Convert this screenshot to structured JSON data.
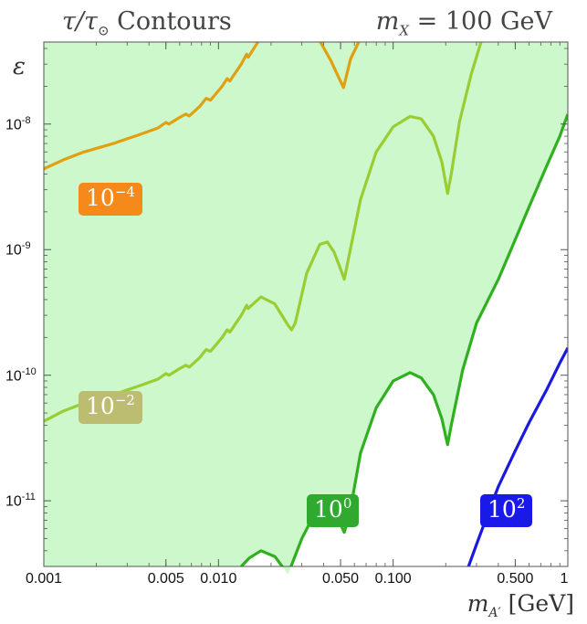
{
  "chart_data": {
    "type": "line",
    "title_left": "τ/τ",
    "title_left_sub": "⊙",
    "title_left_rest": "Contours",
    "title_right": "m",
    "title_right_sub": "X",
    "title_right_rest": " = 100 GeV",
    "ylabel": "ε",
    "xlabel": "m",
    "xlabel_sub": "A′",
    "xlabel_unit": "[GeV]",
    "xscale": "log",
    "yscale": "log",
    "xlim": [
      0.001,
      1
    ],
    "ylim": [
      3e-12,
      4.5e-08
    ],
    "xticks": [
      {
        "value": 0.001,
        "label": "0.001"
      },
      {
        "value": 0.005,
        "label": "0.005"
      },
      {
        "value": 0.01,
        "label": "0.010"
      },
      {
        "value": 0.05,
        "label": "0.050"
      },
      {
        "value": 0.1,
        "label": "0.100"
      },
      {
        "value": 0.5,
        "label": "0.500"
      },
      {
        "value": 1,
        "label": "1"
      }
    ],
    "yticks": [
      {
        "value": 1e-08,
        "base": "10",
        "exp": "-8"
      },
      {
        "value": 1e-09,
        "base": "10",
        "exp": "-9"
      },
      {
        "value": 1e-10,
        "base": "10",
        "exp": "-10"
      },
      {
        "value": 1e-11,
        "base": "10",
        "exp": "-11"
      }
    ],
    "shading": {
      "color": "#ccf8cc",
      "description_region": "tau < tau_sun"
    },
    "series": [
      {
        "label": "10^-4",
        "color": "#e0a010",
        "points": [
          [
            0.001,
            4.4e-09
          ],
          [
            0.0013,
            5.2e-09
          ],
          [
            0.0017,
            6e-09
          ],
          [
            0.0025,
            7e-09
          ],
          [
            0.0035,
            8.2e-09
          ],
          [
            0.0045,
            9.3e-09
          ],
          [
            0.005,
            1.03e-08
          ],
          [
            0.0052,
            1e-08
          ],
          [
            0.006,
            1.13e-08
          ],
          [
            0.0065,
            1.2e-08
          ],
          [
            0.0068,
            1.16e-08
          ],
          [
            0.0078,
            1.38e-08
          ],
          [
            0.0085,
            1.6e-08
          ],
          [
            0.009,
            1.55e-08
          ],
          [
            0.0105,
            2e-08
          ],
          [
            0.0112,
            2.3e-08
          ],
          [
            0.0116,
            2.2e-08
          ],
          [
            0.0135,
            3e-08
          ],
          [
            0.0145,
            3.6e-08
          ],
          [
            0.0148,
            3.4e-08
          ],
          [
            0.017,
            4.6e-08
          ]
        ]
      },
      {
        "label": "10^-4 (upper branch)",
        "color": "#e0a010",
        "points": [
          [
            0.038,
            4.6e-08
          ],
          [
            0.044,
            3.2e-08
          ],
          [
            0.052,
            1.95e-08
          ],
          [
            0.057,
            3.3e-08
          ],
          [
            0.064,
            4.6e-08
          ]
        ]
      },
      {
        "label": "10^-2",
        "color": "#9acd32",
        "points": [
          [
            0.001,
            4.3e-11
          ],
          [
            0.0013,
            5.2e-11
          ],
          [
            0.0017,
            6e-11
          ],
          [
            0.0025,
            7e-11
          ],
          [
            0.0035,
            8.2e-11
          ],
          [
            0.0045,
            9.3e-11
          ],
          [
            0.005,
            1.03e-10
          ],
          [
            0.0052,
            1e-10
          ],
          [
            0.006,
            1.13e-10
          ],
          [
            0.0065,
            1.2e-10
          ],
          [
            0.0068,
            1.16e-10
          ],
          [
            0.0078,
            1.38e-10
          ],
          [
            0.0085,
            1.6e-10
          ],
          [
            0.009,
            1.55e-10
          ],
          [
            0.0105,
            2e-10
          ],
          [
            0.0112,
            2.3e-10
          ],
          [
            0.0116,
            2.2e-10
          ],
          [
            0.0135,
            3e-10
          ],
          [
            0.0145,
            3.6e-10
          ],
          [
            0.0148,
            3.4e-10
          ],
          [
            0.0175,
            4.2e-10
          ],
          [
            0.021,
            3.7e-10
          ],
          [
            0.025,
            2.5e-10
          ],
          [
            0.0262,
            2.3e-10
          ],
          [
            0.0275,
            2.6e-10
          ],
          [
            0.032,
            6.5e-10
          ],
          [
            0.038,
            1.1e-09
          ],
          [
            0.042,
            1.15e-09
          ],
          [
            0.046,
            9.5e-10
          ],
          [
            0.05,
            7e-10
          ],
          [
            0.0525,
            5.8e-10
          ],
          [
            0.055,
            8e-10
          ],
          [
            0.065,
            2.5e-09
          ],
          [
            0.08,
            6e-09
          ],
          [
            0.1,
            9.5e-09
          ],
          [
            0.125,
            1.15e-08
          ],
          [
            0.145,
            1.1e-08
          ],
          [
            0.17,
            8e-09
          ],
          [
            0.19,
            5e-09
          ],
          [
            0.205,
            2.8e-09
          ],
          [
            0.215,
            4e-09
          ],
          [
            0.24,
            1.05e-08
          ],
          [
            0.28,
            2.5e-08
          ],
          [
            0.32,
            4.6e-08
          ]
        ]
      },
      {
        "label": "10^0",
        "color": "#30b020",
        "points": [
          [
            0.0135,
            3e-12
          ],
          [
            0.015,
            3.5e-12
          ],
          [
            0.0175,
            4e-12
          ],
          [
            0.021,
            3.6e-12
          ],
          [
            0.025,
            2.6e-12
          ],
          [
            0.03,
            5e-12
          ],
          [
            0.038,
            9.5e-12
          ],
          [
            0.046,
            8.5e-12
          ],
          [
            0.0525,
            5.6e-12
          ],
          [
            0.056,
            7.5e-12
          ],
          [
            0.065,
            2.4e-11
          ],
          [
            0.08,
            5.5e-11
          ],
          [
            0.1,
            9e-11
          ],
          [
            0.125,
            1.05e-10
          ],
          [
            0.145,
            9.5e-11
          ],
          [
            0.17,
            7e-11
          ],
          [
            0.19,
            4.5e-11
          ],
          [
            0.205,
            2.8e-11
          ],
          [
            0.215,
            4e-11
          ],
          [
            0.25,
            1.1e-10
          ],
          [
            0.3,
            2.6e-10
          ],
          [
            0.4,
            5.8e-10
          ],
          [
            0.5,
            1.2e-09
          ],
          [
            0.6,
            2.2e-09
          ],
          [
            0.75,
            4.5e-09
          ],
          [
            0.9,
            8e-09
          ],
          [
            1.0,
            1.2e-08
          ]
        ]
      },
      {
        "label": "10^2",
        "color": "#1a1adf",
        "points": [
          [
            0.27,
            3e-12
          ],
          [
            0.3,
            4.5e-12
          ],
          [
            0.35,
            8e-12
          ],
          [
            0.4,
            1.3e-11
          ],
          [
            0.5,
            2.5e-11
          ],
          [
            0.6,
            4.2e-11
          ],
          [
            0.75,
            7.5e-11
          ],
          [
            0.9,
            1.25e-10
          ],
          [
            1.0,
            1.65e-10
          ]
        ]
      }
    ],
    "labels": [
      {
        "base": "10",
        "exp": "−4",
        "color": "#f58a1a"
      },
      {
        "base": "10",
        "exp": "−2",
        "color": "#bdbd72"
      },
      {
        "base": "10",
        "exp": "0",
        "color": "#2faa2f"
      },
      {
        "base": "10",
        "exp": "2",
        "color": "#1a1ae8"
      }
    ]
  }
}
